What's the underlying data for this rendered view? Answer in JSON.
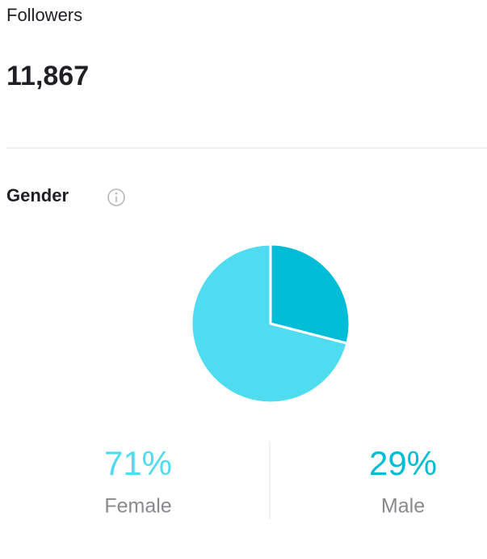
{
  "followers_label": "Followers",
  "followers_count": "11,867",
  "chart_data": {
    "type": "pie",
    "title": "Gender",
    "categories": [
      "Female",
      "Male"
    ],
    "values": [
      71,
      29
    ],
    "value_labels": [
      "71%",
      "29%"
    ],
    "colors": [
      "#4fdcf0",
      "#00bcd6"
    ]
  }
}
